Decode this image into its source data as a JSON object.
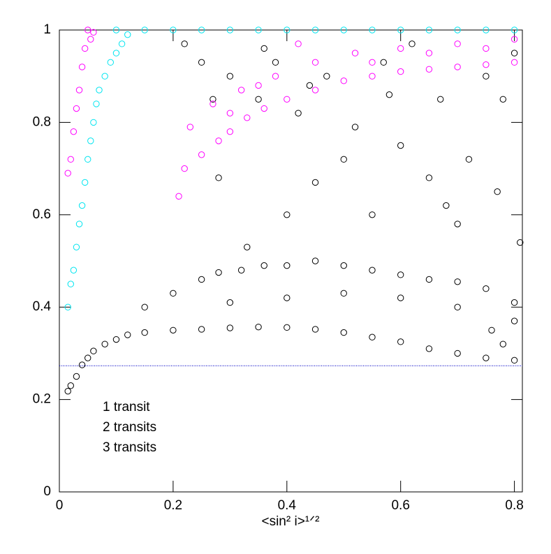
{
  "chart_data": {
    "type": "scatter",
    "x_label": "<sin² i>¹ᐟ²",
    "xlim": [
      0,
      0.814
    ],
    "ylim": [
      0,
      1
    ],
    "xticks": [
      0,
      0.2,
      0.4,
      0.6,
      0.8
    ],
    "yticks": [
      0,
      0.2,
      0.4,
      0.6,
      0.8,
      1
    ],
    "hline": {
      "value": 0.273,
      "color": "#1a1acc"
    },
    "series": [
      {
        "name": "1 transit",
        "color": "#000000",
        "x": [
          0.015,
          0.02,
          0.03,
          0.04,
          0.05,
          0.06,
          0.08,
          0.1,
          0.12,
          0.15,
          0.2,
          0.25,
          0.3,
          0.35,
          0.4,
          0.45,
          0.5,
          0.55,
          0.6,
          0.65,
          0.7,
          0.75,
          0.8,
          0.15,
          0.2,
          0.25,
          0.28,
          0.32,
          0.36,
          0.4,
          0.45,
          0.5,
          0.55,
          0.6,
          0.65,
          0.7,
          0.75,
          0.8,
          0.3,
          0.4,
          0.5,
          0.6,
          0.7,
          0.8,
          0.76,
          0.78,
          0.22,
          0.25,
          0.27,
          0.3,
          0.33,
          0.35,
          0.38,
          0.4,
          0.42,
          0.45,
          0.47,
          0.5,
          0.52,
          0.55,
          0.57,
          0.6,
          0.62,
          0.65,
          0.67,
          0.7,
          0.72,
          0.75,
          0.77,
          0.8,
          0.81,
          0.28,
          0.36,
          0.44,
          0.58,
          0.68,
          0.78
        ],
        "values": [
          0.218,
          0.23,
          0.25,
          0.275,
          0.29,
          0.305,
          0.32,
          0.33,
          0.34,
          0.345,
          0.35,
          0.352,
          0.355,
          0.357,
          0.356,
          0.352,
          0.345,
          0.335,
          0.325,
          0.31,
          0.3,
          0.29,
          0.285,
          0.4,
          0.43,
          0.46,
          0.475,
          0.48,
          0.49,
          0.49,
          0.5,
          0.49,
          0.48,
          0.47,
          0.46,
          0.455,
          0.44,
          0.41,
          0.41,
          0.42,
          0.43,
          0.42,
          0.4,
          0.37,
          0.35,
          0.32,
          0.97,
          0.93,
          0.85,
          0.9,
          0.53,
          0.85,
          0.93,
          0.6,
          0.82,
          0.67,
          0.9,
          0.72,
          0.79,
          0.6,
          0.93,
          0.75,
          0.97,
          0.68,
          0.85,
          0.58,
          0.72,
          0.9,
          0.65,
          0.95,
          0.54,
          0.68,
          0.96,
          0.88,
          0.86,
          0.62,
          0.85
        ]
      },
      {
        "name": "2 transits",
        "color": "#ff00ff",
        "x": [
          0.015,
          0.02,
          0.025,
          0.03,
          0.035,
          0.04,
          0.045,
          0.05,
          0.055,
          0.06,
          0.21,
          0.22,
          0.25,
          0.28,
          0.3,
          0.33,
          0.36,
          0.4,
          0.45,
          0.5,
          0.55,
          0.6,
          0.65,
          0.7,
          0.75,
          0.8,
          0.23,
          0.27,
          0.32,
          0.38,
          0.45,
          0.52,
          0.6,
          0.7,
          0.8,
          0.42,
          0.55,
          0.65,
          0.75,
          0.3,
          0.35
        ],
        "values": [
          0.69,
          0.72,
          0.78,
          0.83,
          0.87,
          0.92,
          0.96,
          1,
          0.98,
          0.995,
          0.64,
          0.7,
          0.73,
          0.76,
          0.78,
          0.81,
          0.83,
          0.85,
          0.87,
          0.89,
          0.9,
          0.91,
          0.915,
          0.92,
          0.925,
          0.93,
          0.79,
          0.84,
          0.87,
          0.9,
          0.93,
          0.95,
          0.96,
          0.97,
          0.98,
          0.97,
          0.93,
          0.95,
          0.96,
          0.82,
          0.88
        ]
      },
      {
        "name": "3 transits",
        "color": "#00e5f0",
        "x": [
          0.015,
          0.02,
          0.025,
          0.03,
          0.035,
          0.04,
          0.045,
          0.05,
          0.055,
          0.06,
          0.065,
          0.07,
          0.08,
          0.09,
          0.1,
          0.11,
          0.12,
          0.1,
          0.15,
          0.2,
          0.25,
          0.3,
          0.35,
          0.4,
          0.45,
          0.5,
          0.55,
          0.6,
          0.65,
          0.7,
          0.75,
          0.8
        ],
        "values": [
          0.4,
          0.45,
          0.48,
          0.53,
          0.58,
          0.62,
          0.67,
          0.72,
          0.76,
          0.8,
          0.84,
          0.87,
          0.9,
          0.93,
          0.95,
          0.97,
          0.99,
          1,
          1,
          1,
          1,
          1,
          1,
          1,
          1,
          1,
          1,
          1,
          1,
          1,
          1,
          1
        ]
      }
    ]
  }
}
